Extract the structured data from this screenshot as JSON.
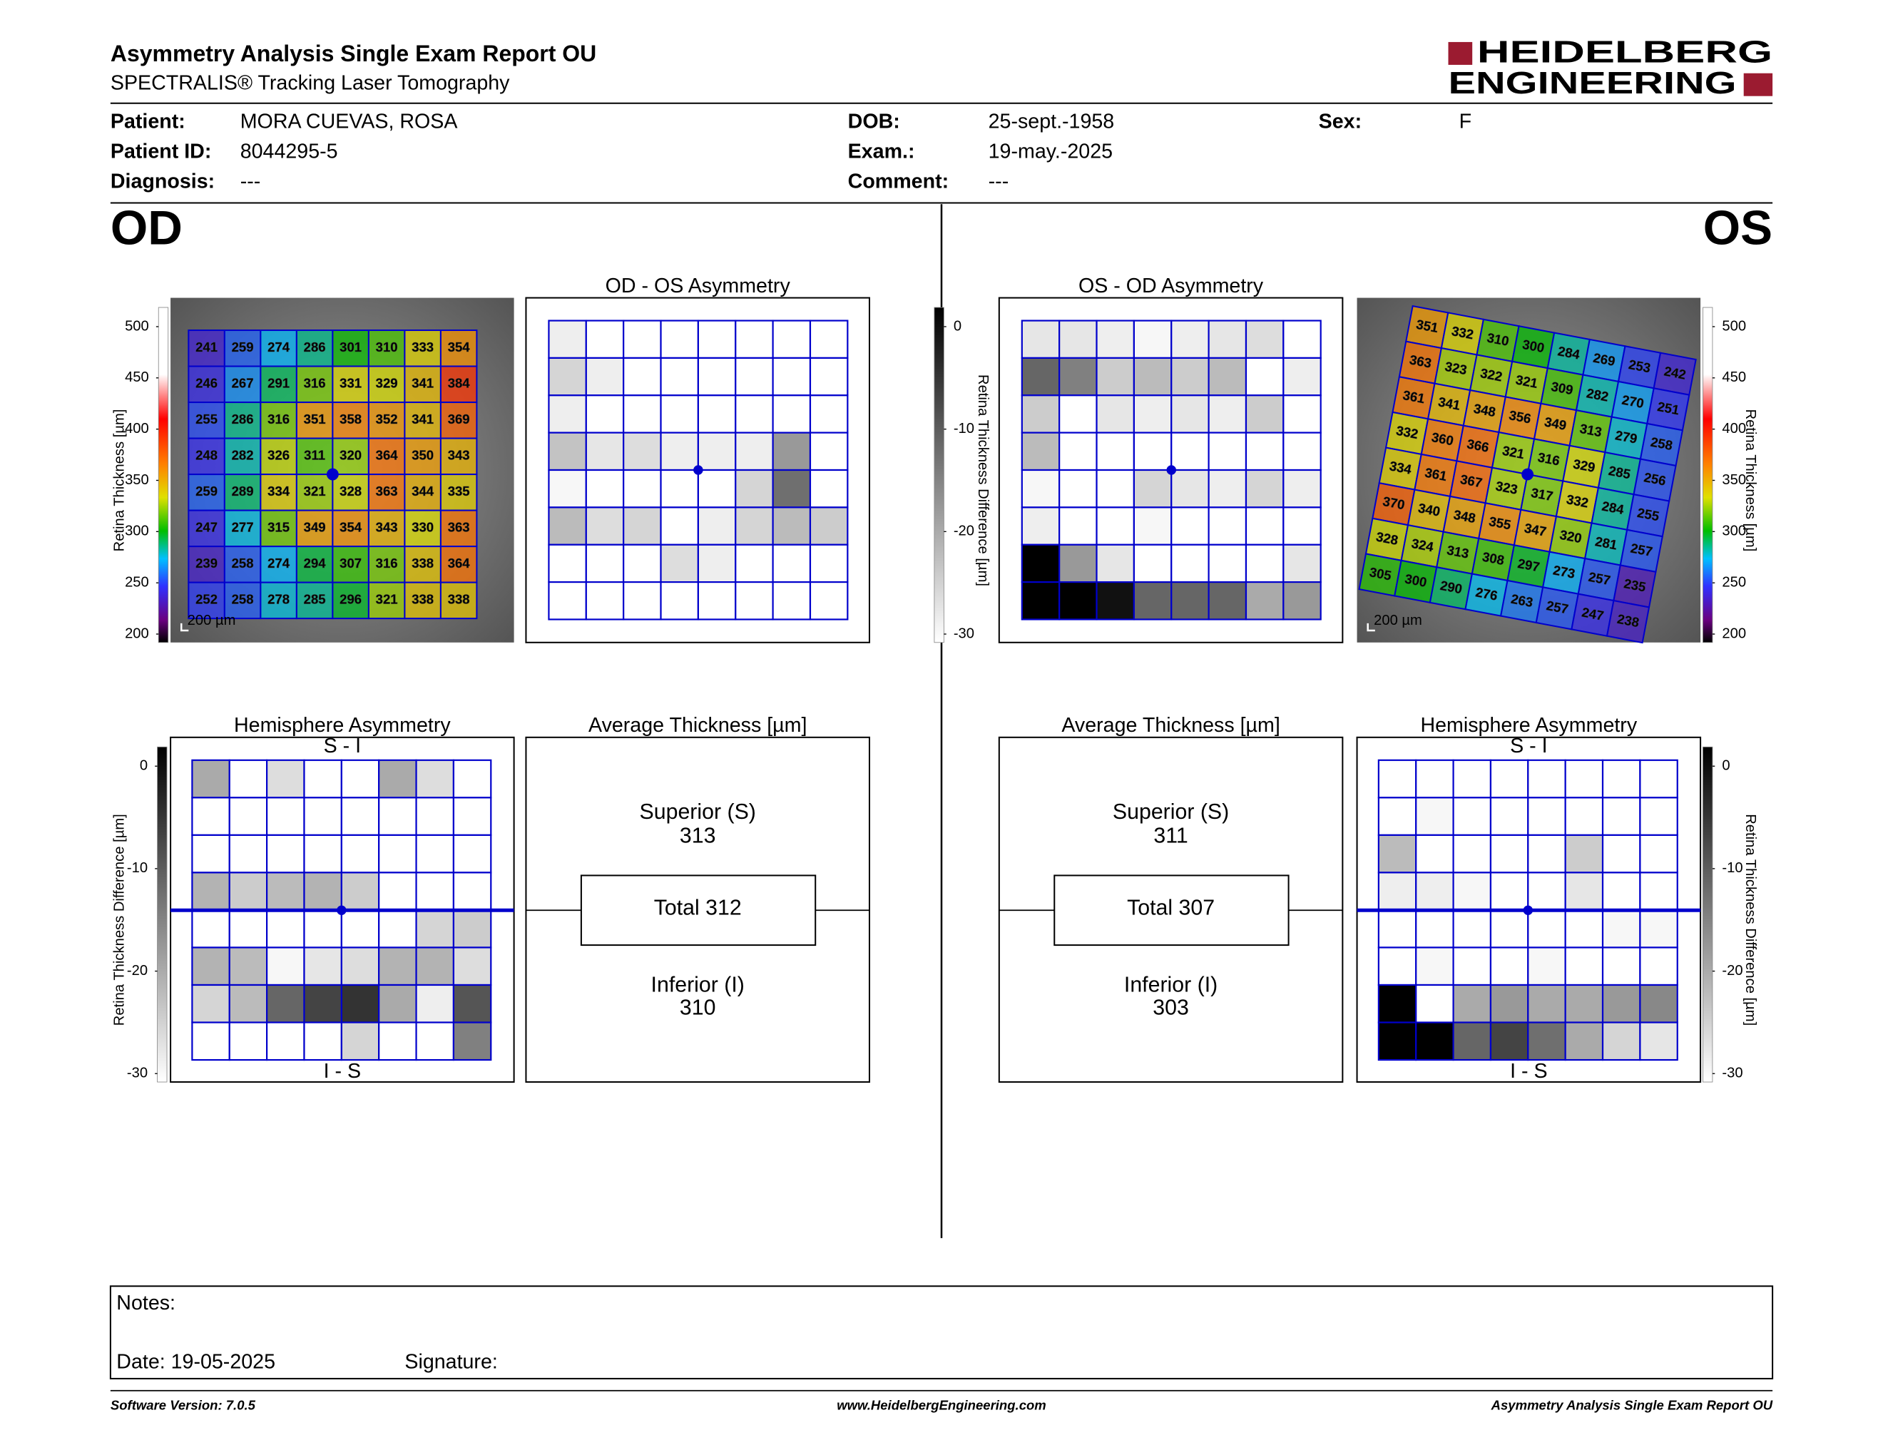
{
  "header": {
    "title": "Asymmetry Analysis Single Exam Report OU",
    "subtitle": "SPECTRALIS® Tracking Laser Tomography",
    "logo": [
      "HEIDELBERG",
      "ENGINEERING"
    ]
  },
  "info": [
    [
      "Patient:",
      "MORA CUEVAS, ROSA"
    ],
    [
      "Patient ID:",
      "8044295-5"
    ],
    [
      "Diagnosis:",
      "---"
    ],
    [
      "DOB:",
      "25-sept.-1958"
    ],
    [
      "Exam.:",
      "19-may.-2025"
    ],
    [
      "Comment:",
      "---"
    ],
    [
      "Sex:",
      "F"
    ]
  ],
  "thickness_scale": {
    "label": "Retina Thickness [µm]",
    "lim": [
      200,
      500
    ],
    "ticks": [
      500,
      450,
      400,
      350,
      300,
      250,
      200
    ]
  },
  "difference_scale": {
    "label": "Retina Thickness Difference [µm]",
    "lim": [
      -30,
      0
    ],
    "ticks": [
      -30,
      -20,
      -10,
      0
    ]
  },
  "od": {
    "label": "OD",
    "thickness_map": {
      "scale_bar": "200 µm",
      "grid": [
        [
          241,
          259,
          274,
          286,
          301,
          310,
          333,
          354
        ],
        [
          246,
          267,
          291,
          316,
          331,
          329,
          341,
          384
        ],
        [
          255,
          286,
          316,
          351,
          358,
          352,
          341,
          369
        ],
        [
          248,
          282,
          326,
          311,
          320,
          364,
          350,
          343
        ],
        [
          259,
          289,
          334,
          321,
          328,
          363,
          344,
          335
        ],
        [
          247,
          277,
          315,
          349,
          354,
          343,
          330,
          363
        ],
        [
          239,
          258,
          274,
          294,
          307,
          316,
          338,
          364
        ],
        [
          252,
          258,
          278,
          285,
          296,
          321,
          338,
          338
        ]
      ]
    },
    "asymmetry": {
      "title": "OD - OS Asymmetry",
      "grid": [
        [
          -2,
          0,
          0,
          0,
          0,
          0,
          0,
          0
        ],
        [
          -5,
          -2,
          0,
          0,
          0,
          0,
          0,
          0
        ],
        [
          -2,
          0,
          0,
          0,
          0,
          0,
          0,
          0
        ],
        [
          -7,
          -3,
          -4,
          -2,
          -2,
          -2,
          -12,
          0
        ],
        [
          -1,
          0,
          0,
          0,
          0,
          -5,
          -17,
          0
        ],
        [
          -8,
          -4,
          -5,
          0,
          -2,
          -5,
          -8,
          -6
        ],
        [
          0,
          0,
          0,
          -4,
          -2,
          0,
          0,
          0
        ],
        [
          0,
          0,
          0,
          0,
          0,
          0,
          0,
          0
        ]
      ]
    },
    "hemisphere": {
      "title": "Hemisphere Asymmetry",
      "top": "S - I",
      "bottom": "I - S",
      "grid": [
        [
          -10,
          0,
          -4,
          0,
          0,
          -10,
          -4,
          0
        ],
        [
          0,
          0,
          0,
          0,
          0,
          0,
          0,
          0
        ],
        [
          0,
          0,
          0,
          0,
          0,
          0,
          0,
          0
        ],
        [
          -9,
          -6,
          -8,
          -9,
          -6,
          0,
          0,
          0
        ],
        [
          0,
          0,
          0,
          0,
          0,
          0,
          -5,
          -6
        ],
        [
          -9,
          -8,
          -1,
          -3,
          -4,
          -9,
          -9,
          -4
        ],
        [
          -5,
          -8,
          -18,
          -22,
          -24,
          -10,
          -2,
          -20
        ],
        [
          0,
          0,
          0,
          0,
          -5,
          0,
          0,
          -15
        ]
      ]
    },
    "average": {
      "title": "Average Thickness [µm]",
      "superior_label": "Superior (S)",
      "superior": 313,
      "total_label": "Total",
      "total": 312,
      "inferior_label": "Inferior (I)",
      "inferior": 310
    }
  },
  "os": {
    "label": "OS",
    "thickness_map": {
      "scale_bar": "200 µm",
      "grid": [
        [
          351,
          332,
          310,
          300,
          284,
          269,
          253,
          242
        ],
        [
          363,
          323,
          322,
          321,
          309,
          282,
          270,
          251
        ],
        [
          361,
          341,
          348,
          356,
          349,
          313,
          279,
          258
        ],
        [
          332,
          360,
          366,
          321,
          316,
          329,
          285,
          256
        ],
        [
          334,
          361,
          367,
          323,
          317,
          332,
          284,
          255
        ],
        [
          370,
          340,
          348,
          355,
          347,
          320,
          281,
          257
        ],
        [
          328,
          324,
          313,
          308,
          297,
          273,
          257,
          235
        ],
        [
          305,
          300,
          290,
          276,
          263,
          257,
          247,
          238
        ]
      ]
    },
    "asymmetry": {
      "title": "OS - OD Asymmetry",
      "grid": [
        [
          -3,
          -3,
          -2,
          -1,
          -2,
          -3,
          -4,
          0
        ],
        [
          -18,
          -15,
          -6,
          -8,
          -6,
          -8,
          0,
          -2
        ],
        [
          -6,
          0,
          -3,
          -2,
          -3,
          -2,
          -6,
          0
        ],
        [
          -8,
          0,
          0,
          0,
          0,
          0,
          0,
          0
        ],
        [
          -1,
          0,
          0,
          -5,
          -3,
          -2,
          -5,
          -2
        ],
        [
          -2,
          0,
          0,
          -1,
          0,
          0,
          0,
          0
        ],
        [
          -30,
          -12,
          -3,
          0,
          0,
          0,
          0,
          -3
        ],
        [
          -30,
          -30,
          -28,
          -18,
          -18,
          -18,
          -10,
          -12
        ]
      ]
    },
    "hemisphere": {
      "title": "Hemisphere Asymmetry",
      "top": "S - I",
      "bottom": "I - S",
      "grid": [
        [
          0,
          0,
          0,
          0,
          0,
          0,
          0,
          0
        ],
        [
          0,
          -1,
          0,
          0,
          0,
          0,
          0,
          0
        ],
        [
          -8,
          0,
          0,
          0,
          0,
          -6,
          0,
          0
        ],
        [
          -2,
          -2,
          -1,
          0,
          0,
          -3,
          0,
          0
        ],
        [
          0,
          0,
          0,
          0,
          0,
          0,
          -1,
          -1
        ],
        [
          0,
          -1,
          0,
          0,
          -1,
          0,
          0,
          0
        ],
        [
          -30,
          0,
          -10,
          -12,
          -10,
          -10,
          -12,
          -14
        ],
        [
          -30,
          -30,
          -18,
          -22,
          -17,
          -10,
          -5,
          -3
        ]
      ]
    },
    "average": {
      "title": "Average Thickness [µm]",
      "superior_label": "Superior (S)",
      "superior": 311,
      "total_label": "Total",
      "total": 307,
      "inferior_label": "Inferior (I)",
      "inferior": 303
    }
  },
  "notes": {
    "label": "Notes:",
    "date": "Date: 19-05-2025",
    "signature": "Signature:"
  },
  "footer": {
    "left": "Software Version: 7.0.5",
    "center": "www.HeidelbergEngineering.com",
    "right": "Asymmetry Analysis Single Exam Report OU"
  }
}
